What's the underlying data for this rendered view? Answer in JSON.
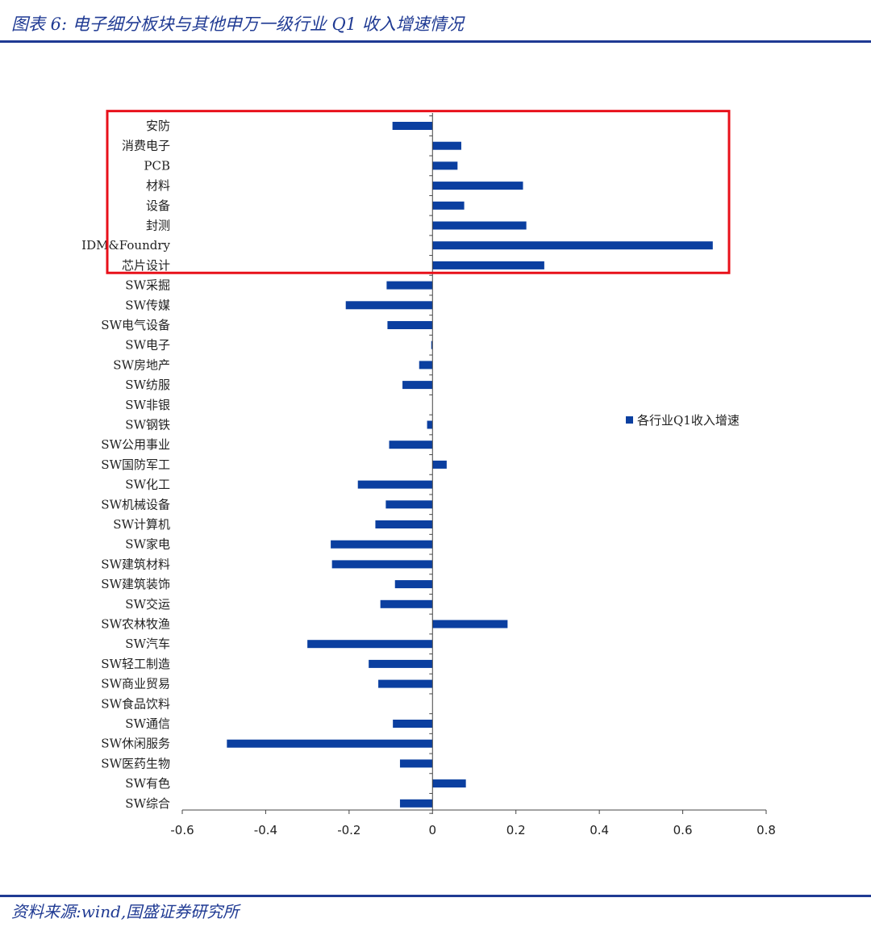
{
  "header": {
    "title": "图表 6:  电子细分板块与其他申万一级行业 Q1 收入增速情况"
  },
  "footer": {
    "source": "资料来源:wind,国盛证券研究所"
  },
  "colors": {
    "brand": "#1f3a93",
    "bar": "#0b3fa0",
    "highlight": "#e8101a"
  },
  "chart_data": {
    "type": "bar",
    "orientation": "horizontal",
    "title": "",
    "xlabel": "",
    "ylabel": "",
    "xlim": [
      -0.6,
      0.8
    ],
    "xticks": [
      -0.6,
      -0.4,
      -0.2,
      0,
      0.2,
      0.4,
      0.6,
      0.8
    ],
    "grid": false,
    "legend_position": "right",
    "series": [
      {
        "name": "各行业Q1收入增速"
      }
    ],
    "categories": [
      "安防",
      "消费电子",
      "PCB",
      "材料",
      "设备",
      "封测",
      "IDM&Foundry",
      "芯片设计",
      "SW采掘",
      "SW传媒",
      "SW电气设备",
      "SW电子",
      "SW房地产",
      "SW纺服",
      "SW非银",
      "SW钢铁",
      "SW公用事业",
      "SW国防军工",
      "SW化工",
      "SW机械设备",
      "SW计算机",
      "SW家电",
      "SW建筑材料",
      "SW建筑装饰",
      "SW交运",
      "SW农林牧渔",
      "SW汽车",
      "SW轻工制造",
      "SW商业贸易",
      "SW食品饮料",
      "SW通信",
      "SW休闲服务",
      "SW医药生物",
      "SW有色",
      "SW综合"
    ],
    "values": [
      -0.096,
      0.069,
      0.06,
      0.217,
      0.076,
      0.225,
      0.672,
      0.268,
      -0.11,
      -0.208,
      -0.108,
      -0.003,
      -0.032,
      -0.072,
      0.0,
      -0.013,
      -0.104,
      0.034,
      -0.179,
      -0.112,
      -0.137,
      -0.244,
      -0.241,
      -0.09,
      -0.125,
      0.18,
      -0.3,
      -0.153,
      -0.13,
      0.0,
      -0.095,
      -0.493,
      -0.078,
      0.08,
      -0.078
    ],
    "highlight_range": [
      0,
      7
    ]
  }
}
